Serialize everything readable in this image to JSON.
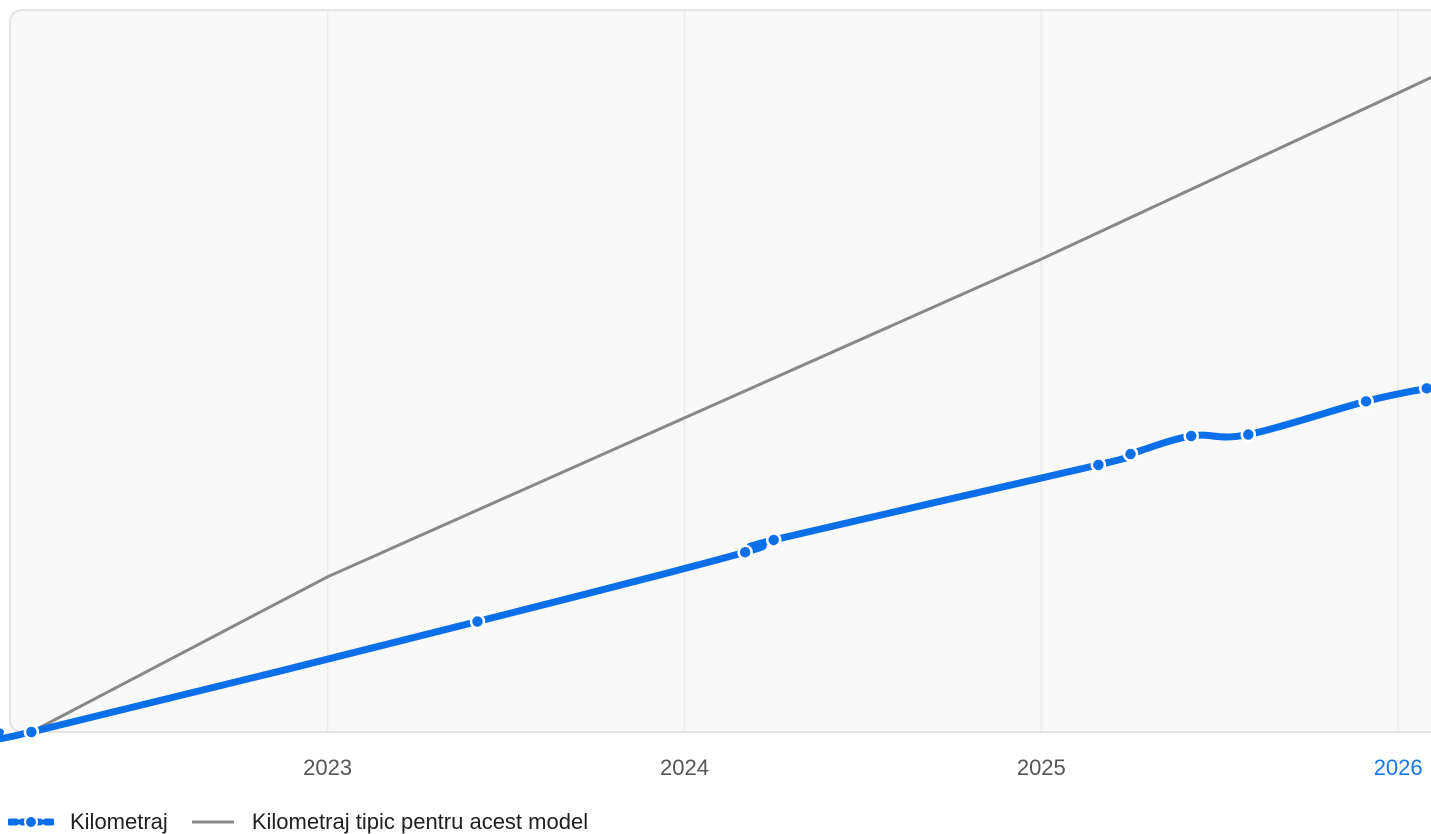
{
  "colors": {
    "mileage": "#0a6fe8",
    "typical": "#888888",
    "plot_bg": "#f9f9f9",
    "plot_border": "#e4e4e4",
    "grid": "#ececec",
    "tick": "#555555",
    "tick_highlight": "#1877e6"
  },
  "chart_data": {
    "type": "line",
    "x_axis": {
      "ticks": [
        "2023",
        "2024",
        "2025",
        "2026"
      ],
      "highlight_tick": "2026",
      "range": [
        2022.11,
        2026.12
      ]
    },
    "y_axis": {
      "range": [
        0,
        100
      ],
      "labels_visible": false
    },
    "grid": {
      "vertical": true,
      "horizontal": false
    },
    "legend": {
      "position": "bottom-left"
    },
    "series": [
      {
        "name": "Kilometraj",
        "style": "thick-line-with-markers",
        "points": [
          {
            "x": 2022.17,
            "y": 0.0
          },
          {
            "x": 2023.42,
            "y": 15.3
          },
          {
            "x": 2024.17,
            "y": 24.9
          },
          {
            "x": 2024.25,
            "y": 26.6
          },
          {
            "x": 2025.16,
            "y": 37.0
          },
          {
            "x": 2025.25,
            "y": 38.5
          },
          {
            "x": 2025.42,
            "y": 41.0
          },
          {
            "x": 2025.58,
            "y": 41.2
          },
          {
            "x": 2025.91,
            "y": 45.8
          },
          {
            "x": 2026.08,
            "y": 47.6
          },
          {
            "x": 2026.12,
            "y": 48.2
          }
        ]
      },
      {
        "name": "Kilometraj tipic pentru acest model",
        "style": "thin-line",
        "points": [
          {
            "x": 2022.17,
            "y": 0.0
          },
          {
            "x": 2023.0,
            "y": 21.5
          },
          {
            "x": 2024.0,
            "y": 43.5
          },
          {
            "x": 2025.0,
            "y": 65.5
          },
          {
            "x": 2026.0,
            "y": 88.5
          },
          {
            "x": 2026.12,
            "y": 91.3
          }
        ]
      }
    ]
  },
  "legend_items": [
    {
      "label": "Kilometraj"
    },
    {
      "label": "Kilometraj tipic pentru acest model"
    }
  ]
}
